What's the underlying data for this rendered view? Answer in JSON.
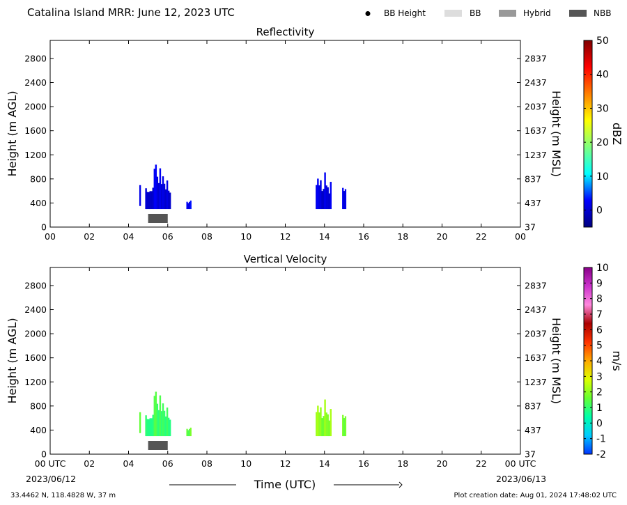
{
  "header": {
    "title": "Catalina Island MRR:  June 12, 2023 UTC",
    "legend": [
      {
        "label": "BB Height",
        "kind": "dot",
        "color": "#000000"
      },
      {
        "label": "BB",
        "kind": "bar",
        "color": "#dddddd"
      },
      {
        "label": "Hybrid",
        "kind": "bar",
        "color": "#999999"
      },
      {
        "label": "NBB",
        "kind": "bar",
        "color": "#555555"
      }
    ]
  },
  "footer": {
    "location": "33.4462 N, 118.4828 W, 37 m",
    "created": "Plot creation date: Aug 01, 2024 17:48:02 UTC",
    "xlabel": "Time (UTC)",
    "start_date": "2023/06/12",
    "end_date": "2023/06/13"
  },
  "chart_data": [
    {
      "type": "heatmap",
      "title": "Reflectivity",
      "xlabel": "",
      "ylabel": "Height (m AGL)",
      "ylabel_right": "Height (m MSL)",
      "xlim": [
        0,
        24
      ],
      "ylim": [
        0,
        3100
      ],
      "x_ticks": [
        "00",
        "02",
        "04",
        "06",
        "08",
        "10",
        "12",
        "14",
        "16",
        "18",
        "20",
        "22",
        "00"
      ],
      "y_ticks": [
        0,
        400,
        800,
        1200,
        1600,
        2000,
        2400,
        2800
      ],
      "y_ticks_right": [
        37,
        437,
        837,
        1237,
        1637,
        2037,
        2437,
        2837
      ],
      "colorbar": {
        "label": "dBZ",
        "range": [
          -5,
          50
        ],
        "ticks": [
          0,
          10,
          20,
          30,
          40,
          50
        ],
        "stops": [
          "#00007f",
          "#0000ff",
          "#00ffff",
          "#7fff7f",
          "#ffff00",
          "#ff7f00",
          "#ff0000",
          "#7f0000"
        ]
      },
      "echo_segments": [
        {
          "x_start": 4.55,
          "x_end": 4.62,
          "y_bottom": 350,
          "y_top": 700,
          "value": 0
        },
        {
          "x_start": 4.85,
          "x_end": 6.15,
          "y_bottom": 300,
          "y_top": 1100,
          "value": 1
        },
        {
          "x_start": 6.95,
          "x_end": 7.2,
          "y_bottom": 300,
          "y_top": 500,
          "value": 2
        },
        {
          "x_start": 13.55,
          "x_end": 14.35,
          "y_bottom": 300,
          "y_top": 1000,
          "value": 1
        },
        {
          "x_start": 14.9,
          "x_end": 15.1,
          "y_bottom": 300,
          "y_top": 800,
          "value": 1
        }
      ],
      "bright_band": [
        {
          "x_start": 5.0,
          "x_end": 6.0,
          "type": "NBB"
        }
      ]
    },
    {
      "type": "heatmap",
      "title": "Vertical Velocity",
      "xlabel": "Time (UTC)",
      "ylabel": "Height (m AGL)",
      "ylabel_right": "Height (m MSL)",
      "xlim": [
        0,
        24
      ],
      "ylim": [
        0,
        3100
      ],
      "x_ticks": [
        "00 UTC",
        "02",
        "04",
        "06",
        "08",
        "10",
        "12",
        "14",
        "16",
        "18",
        "20",
        "22",
        "00 UTC"
      ],
      "y_ticks": [
        0,
        400,
        800,
        1200,
        1600,
        2000,
        2400,
        2800
      ],
      "y_ticks_right": [
        37,
        437,
        837,
        1237,
        1637,
        2037,
        2437,
        2837
      ],
      "colorbar": {
        "label": "m/s",
        "range": [
          -2,
          10
        ],
        "ticks": [
          -2,
          -1,
          0,
          1,
          2,
          3,
          4,
          5,
          6,
          7,
          8,
          9,
          10
        ],
        "stops": [
          "#0033ff",
          "#00ccff",
          "#00ffaa",
          "#66ff33",
          "#ddff00",
          "#ffaa00",
          "#ff3300",
          "#aa0000",
          "#ff88dd",
          "#cc33cc",
          "#880088"
        ]
      },
      "echo_segments": [
        {
          "x_start": 4.55,
          "x_end": 4.62,
          "y_bottom": 350,
          "y_top": 700,
          "value": 1.2
        },
        {
          "x_start": 4.85,
          "x_end": 6.15,
          "y_bottom": 300,
          "y_top": 1100,
          "value": 1.1
        },
        {
          "x_start": 6.95,
          "x_end": 7.2,
          "y_bottom": 300,
          "y_top": 500,
          "value": 1.5
        },
        {
          "x_start": 13.55,
          "x_end": 14.35,
          "y_bottom": 300,
          "y_top": 1000,
          "value": 2.0
        },
        {
          "x_start": 14.9,
          "x_end": 15.1,
          "y_bottom": 300,
          "y_top": 800,
          "value": 1.6
        }
      ],
      "bright_band": [
        {
          "x_start": 5.0,
          "x_end": 6.0,
          "type": "NBB"
        }
      ]
    }
  ]
}
